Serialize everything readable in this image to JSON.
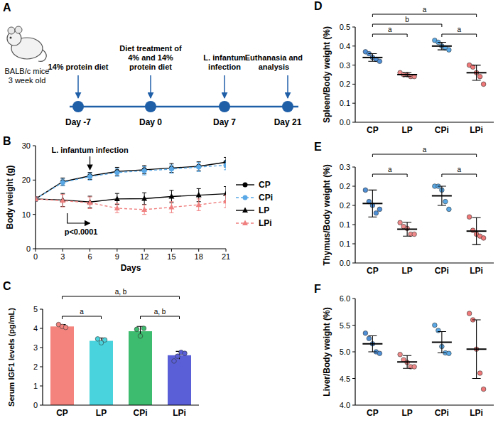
{
  "timeline": {
    "panel": "A",
    "subject": [
      "BALB/c mice",
      "3 week old"
    ],
    "events": [
      {
        "label": "14% protein diet",
        "day": "Day -7"
      },
      {
        "label": "Diet treatment of 4% and 14% protein diet",
        "day": "Day 0"
      },
      {
        "label": "L. infantum infection",
        "day": "Day 7"
      },
      {
        "label": "Euthanasia and analysis",
        "day": "Day 21"
      }
    ]
  },
  "chart_data": [
    {
      "panel": "B",
      "type": "line",
      "y_label": "Body weight (g)",
      "x_label": "Days",
      "x": [
        0,
        3,
        6,
        9,
        12,
        15,
        18,
        21
      ],
      "xlim": [
        0,
        21
      ],
      "xticks": [
        0,
        3,
        6,
        9,
        12,
        15,
        18,
        21
      ],
      "ylim": [
        0,
        30
      ],
      "yticks": [
        0,
        10,
        20,
        30
      ],
      "legend": "right",
      "series": [
        {
          "name": "CP",
          "color": "#000000",
          "marker": "circle",
          "line_style": "solid",
          "values": [
            14.5,
            19.5,
            21.2,
            22.5,
            23.0,
            23.5,
            24.0,
            25.2
          ],
          "errors": [
            0.6,
            1.1,
            1.0,
            1.2,
            1.2,
            1.3,
            1.3,
            1.4
          ]
        },
        {
          "name": "CPi",
          "color": "#5aa9e6",
          "marker": "circle",
          "line_style": "dashed",
          "values": [
            14.5,
            19.3,
            21.0,
            22.2,
            22.7,
            23.2,
            23.8,
            24.3
          ],
          "errors": [
            0.6,
            1.0,
            1.0,
            1.1,
            1.2,
            1.2,
            1.3,
            1.3
          ]
        },
        {
          "name": "LP",
          "color": "#000000",
          "marker": "triangle",
          "line_style": "solid",
          "values": [
            14.5,
            14.2,
            13.6,
            14.5,
            14.6,
            15.2,
            15.6,
            16.0
          ],
          "errors": [
            0.6,
            1.9,
            1.7,
            1.6,
            1.7,
            1.8,
            1.9,
            2.1
          ]
        },
        {
          "name": "LPi",
          "color": "#f08080",
          "marker": "triangle",
          "line_style": "dashed",
          "values": [
            14.5,
            14.0,
            13.4,
            11.8,
            11.4,
            12.1,
            12.8,
            13.8
          ],
          "errors": [
            0.6,
            1.8,
            1.7,
            1.3,
            1.4,
            1.6,
            1.7,
            1.8
          ]
        }
      ],
      "annotations": [
        {
          "text": "L. infantum infection",
          "x": 6
        },
        {
          "text": "p<0.0001",
          "x_start": 3.5,
          "x_end": 6
        }
      ]
    },
    {
      "panel": "C",
      "type": "bar",
      "y_label": "Serum IGF1 levels (pg/mL)",
      "categories": [
        "CP",
        "LP",
        "CPi",
        "LPi"
      ],
      "values": [
        4.1,
        3.35,
        3.85,
        2.6
      ],
      "errors": [
        0.1,
        0.15,
        0.25,
        0.2
      ],
      "points": [
        [
          4.2,
          4.1,
          4.05
        ],
        [
          3.45,
          3.25,
          3.4
        ],
        [
          3.95,
          3.6,
          4.0
        ],
        [
          2.3,
          2.55,
          2.75,
          2.7
        ]
      ],
      "colors": [
        "#f4837d",
        "#49d4dd",
        "#3dbb6e",
        "#5a5fd8"
      ],
      "ylim": [
        0,
        5
      ],
      "yticks": [
        0,
        1,
        2,
        3,
        4,
        5
      ],
      "significance": [
        {
          "from": 0,
          "to": 1,
          "label": "a"
        },
        {
          "from": 0,
          "to": 3,
          "label": "a, b"
        },
        {
          "from": 2,
          "to": 3,
          "label": "a, b"
        }
      ]
    },
    {
      "panel": "D",
      "type": "dot",
      "y_label": "Spleen/Body weight (%)",
      "categories": [
        "CP",
        "LP",
        "CPi",
        "LPi"
      ],
      "colors": [
        "#4f8fd6",
        "#f08a8a",
        "#5aa9e6",
        "#f07878"
      ],
      "points": [
        [
          0.37,
          0.36,
          0.34,
          0.33,
          0.32
        ],
        [
          0.26,
          0.25,
          0.25,
          0.24,
          0.24
        ],
        [
          0.43,
          0.42,
          0.4,
          0.39,
          0.38
        ],
        [
          0.3,
          0.29,
          0.26,
          0.24,
          0.2
        ]
      ],
      "means": [
        0.34,
        0.25,
        0.4,
        0.26
      ],
      "sd": [
        0.02,
        0.01,
        0.02,
        0.04
      ],
      "ylim": [
        0,
        0.5
      ],
      "yticks": [
        {
          "value": 0,
          "label": "0.0"
        },
        0.1,
        0.2,
        0.3,
        0.4,
        0.5
      ],
      "significance": [
        {
          "from": 0,
          "to": 1,
          "label": "a"
        },
        {
          "from": 0,
          "to": 2,
          "label": "b"
        },
        {
          "from": 0,
          "to": 3,
          "label": "a"
        },
        {
          "from": 2,
          "to": 3,
          "label": "a"
        }
      ]
    },
    {
      "panel": "E",
      "type": "dot",
      "y_label": "Thymus/Body weight (%)",
      "categories": [
        "CP",
        "LP",
        "CPi",
        "LPi"
      ],
      "colors": [
        "#4f8fd6",
        "#f08a8a",
        "#5aa9e6",
        "#f07878"
      ],
      "points": [
        [
          0.19,
          0.16,
          0.15,
          0.13,
          0.14
        ],
        [
          0.105,
          0.095,
          0.09,
          0.075,
          0.075
        ],
        [
          0.2,
          0.2,
          0.19,
          0.16,
          0.14
        ],
        [
          0.12,
          0.085,
          0.075,
          0.07,
          0.065
        ]
      ],
      "means": [
        0.155,
        0.088,
        0.175,
        0.083
      ],
      "sd": [
        0.035,
        0.018,
        0.025,
        0.035
      ],
      "ylim": [
        0,
        0.25
      ],
      "yticks": [
        {
          "value": 0,
          "label": "0.0"
        },
        {
          "value": 0.05,
          "label": "0.1"
        },
        0.1,
        {
          "value": 0.15,
          "label": "0.2"
        },
        0.2,
        {
          "value": 0.25,
          "label": "0.3"
        }
      ],
      "significance": [
        {
          "from": 0,
          "to": 1,
          "label": "a"
        },
        {
          "from": 0,
          "to": 3,
          "label": "a"
        },
        {
          "from": 2,
          "to": 3,
          "label": "a"
        }
      ]
    },
    {
      "panel": "F",
      "type": "dot",
      "y_label": "Liver/Body weight (%)",
      "categories": [
        "CP",
        "LP",
        "CPi",
        "LPi"
      ],
      "colors": [
        "#4f8fd6",
        "#f08a8a",
        "#5aa9e6",
        "#f07878"
      ],
      "points": [
        [
          5.35,
          5.25,
          5.15,
          5.0,
          4.97
        ],
        [
          4.95,
          4.85,
          4.8,
          4.72,
          4.72
        ],
        [
          5.5,
          5.4,
          5.1,
          4.98,
          4.97
        ],
        [
          5.72,
          5.6,
          5.05,
          4.6,
          4.3
        ]
      ],
      "means": [
        5.15,
        4.81,
        5.18,
        5.05
      ],
      "sd": [
        0.15,
        0.12,
        0.2,
        0.55
      ],
      "ylim": [
        4,
        6
      ],
      "yticks": [
        {
          "value": 4,
          "label": "4.0"
        },
        4.5,
        {
          "value": 5,
          "label": "5.0"
        },
        5.5,
        {
          "value": 6,
          "label": "6.0"
        }
      ]
    }
  ]
}
